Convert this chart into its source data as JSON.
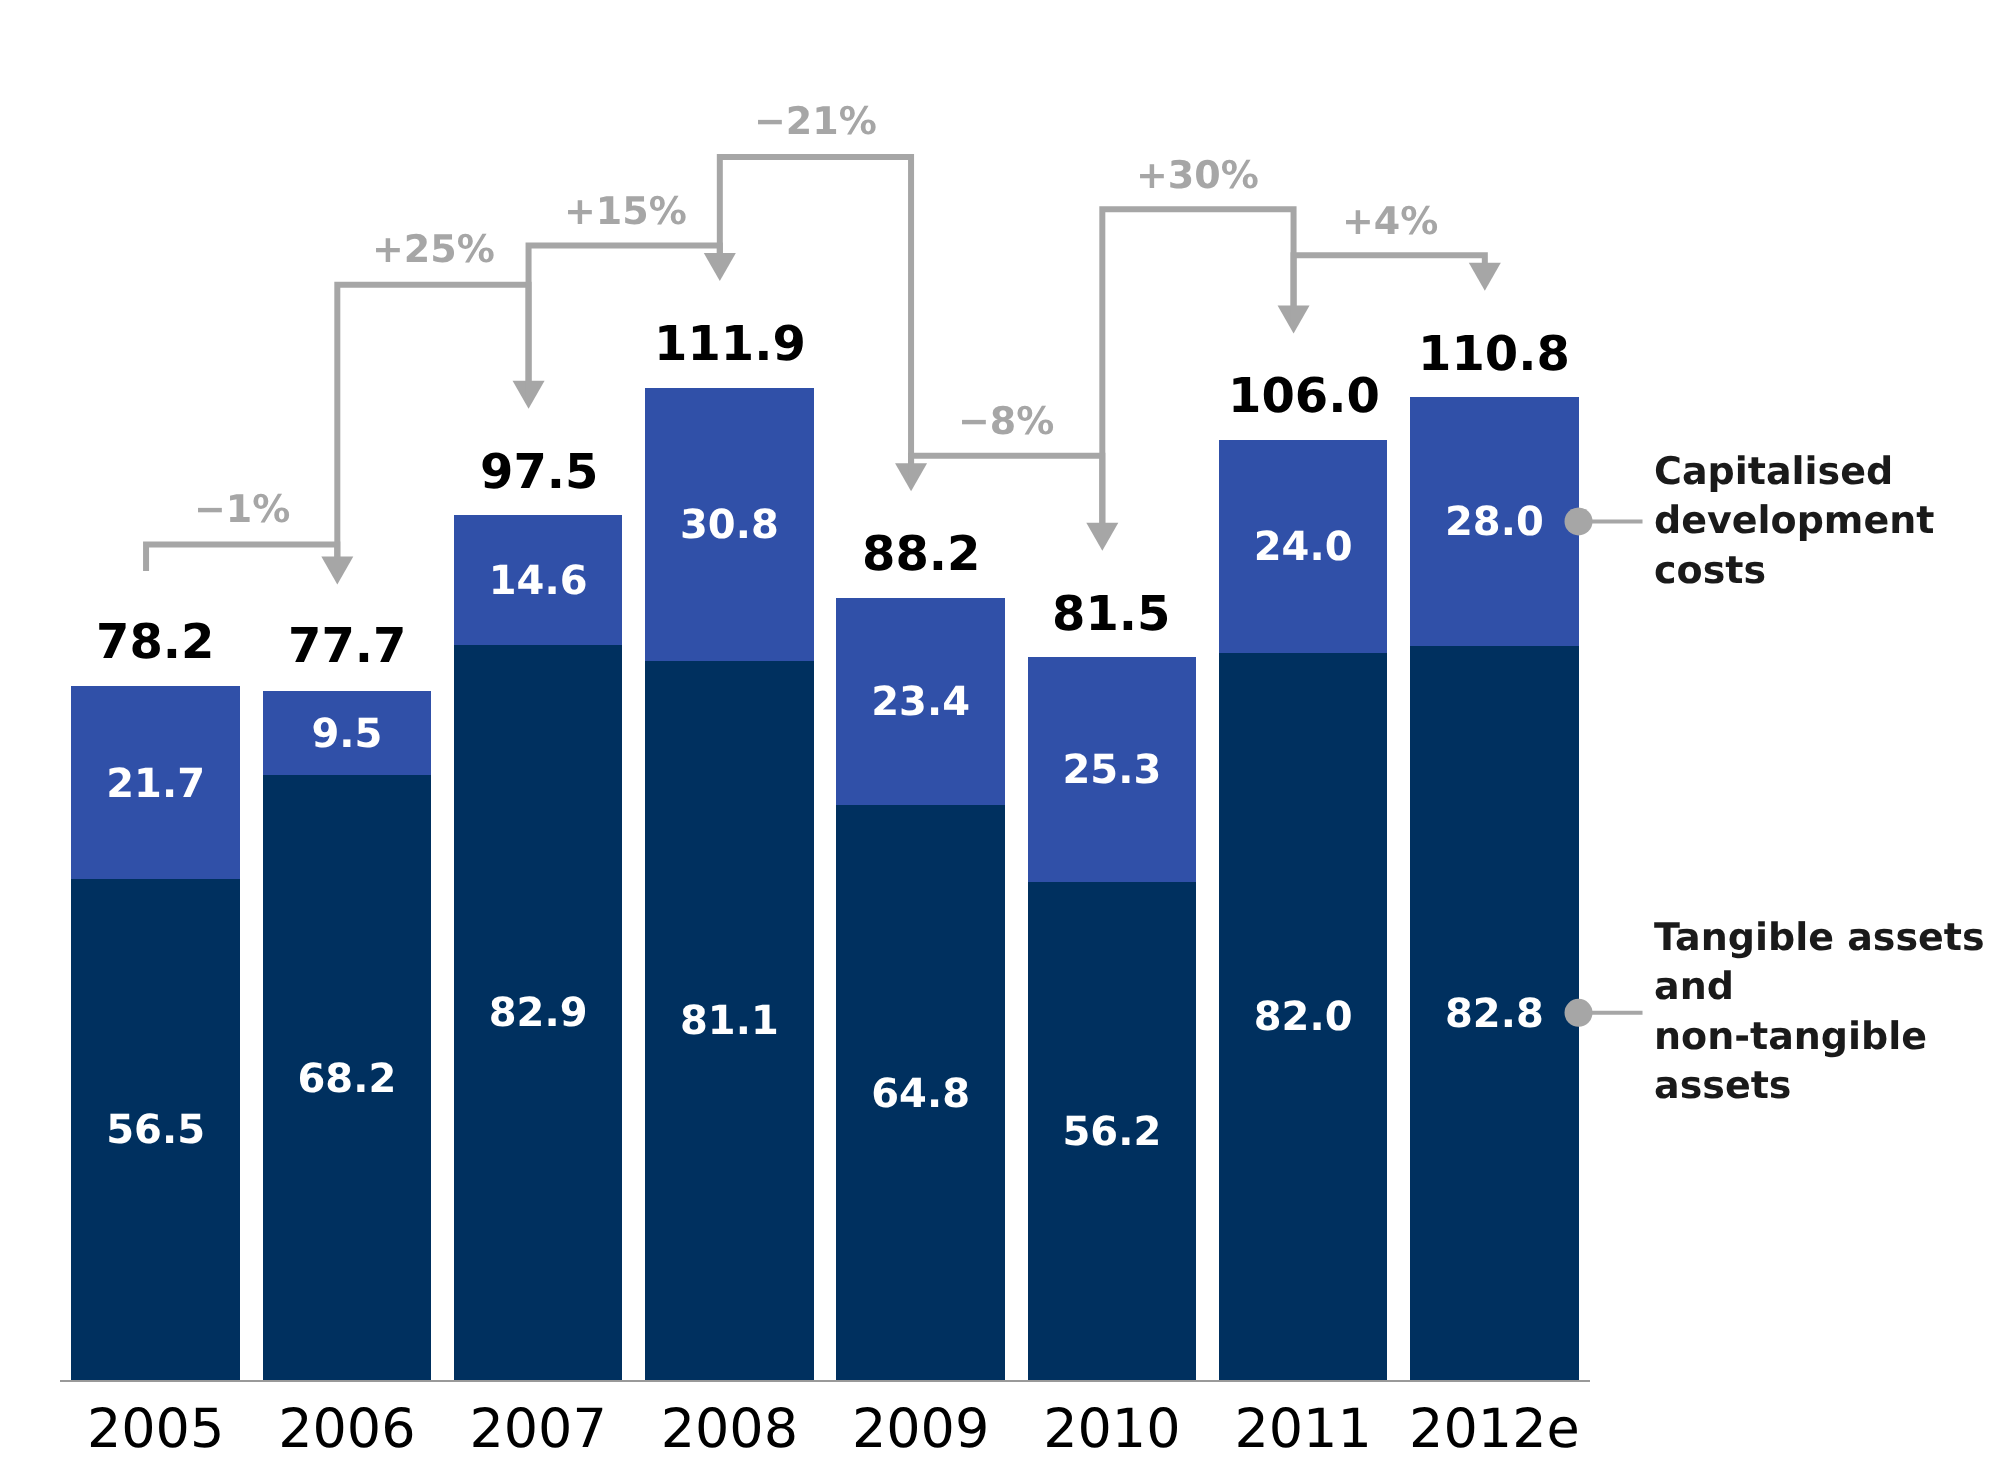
{
  "chart_data": {
    "type": "bar",
    "stacked": true,
    "categories": [
      "2005",
      "2006",
      "2007",
      "2008",
      "2009",
      "2010",
      "2011",
      "2012e"
    ],
    "series": [
      {
        "name": "Tangible assets and non-tangible assets",
        "color": "#00305f",
        "values": [
          56.5,
          68.2,
          82.9,
          81.1,
          64.8,
          56.2,
          82.0,
          82.8
        ],
        "value_labels": [
          "56.5",
          "68.2",
          "82.9",
          "81.1",
          "64.8",
          "56.2",
          "82.0",
          "82.8"
        ]
      },
      {
        "name": "Capitalised development costs",
        "color": "#3050a8",
        "values": [
          21.7,
          9.5,
          14.6,
          30.8,
          23.4,
          25.3,
          24.0,
          28.0
        ],
        "value_labels": [
          "21.7",
          "9.5",
          "14.6",
          "30.8",
          "23.4",
          "25.3",
          "24.0",
          "28.0"
        ]
      }
    ],
    "totals": [
      "78.2",
      "77.7",
      "97.5",
      "111.9",
      "88.2",
      "81.5",
      "106.0",
      "110.8"
    ],
    "annotations": [
      "−1%",
      "+25%",
      "+15%",
      "−21%",
      "−8%",
      "+30%",
      "+4%"
    ],
    "legend": false
  }
}
